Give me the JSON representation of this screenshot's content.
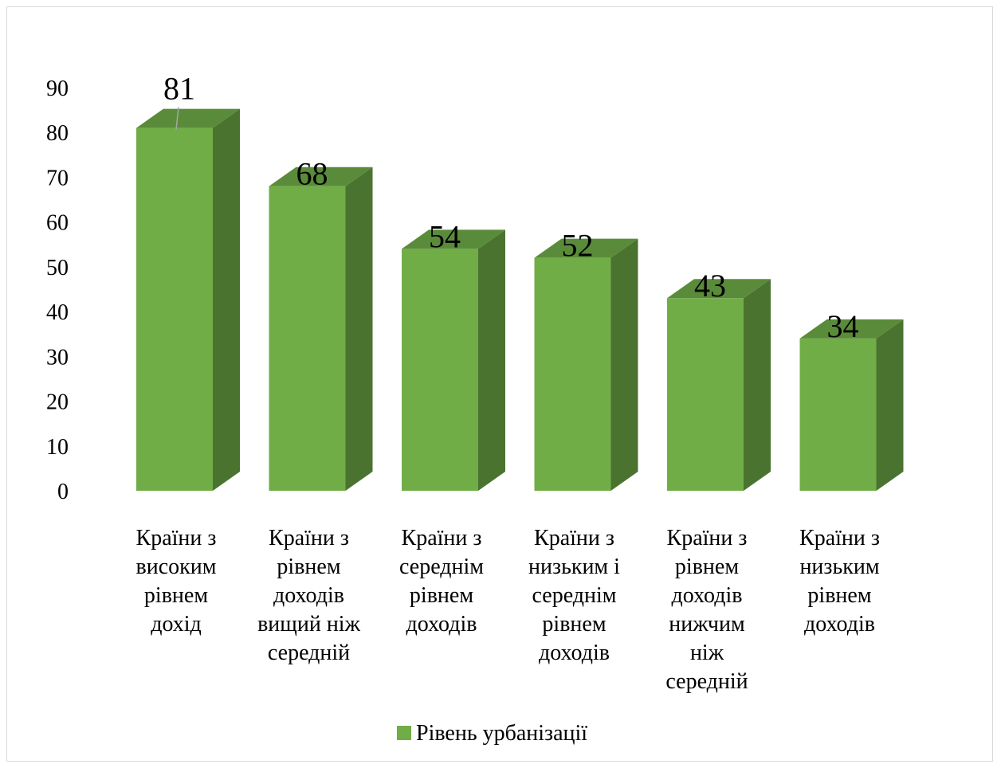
{
  "chart_data": {
    "type": "bar",
    "style": "3d-column",
    "categories": [
      "Країни з високим рівнем дохід",
      "Країни з рівнем доходів вищий ніж середній",
      "Країни з середнім рівнем доходів",
      "Країни з низьким і середнім рівнем доходів",
      "Країни з рівнем доходів нижчим ніж середній",
      "Країни з низьким рівнем доходів"
    ],
    "category_lines": [
      [
        "Країни з",
        "високим",
        "рівнем",
        "дохід"
      ],
      [
        "Країни з",
        "рівнем",
        "доходів",
        "вищий ніж",
        "середній"
      ],
      [
        "Країни з",
        "середнім",
        "рівнем",
        "доходів"
      ],
      [
        "Країни з",
        "низьким і",
        "середнім",
        "рівнем",
        "доходів"
      ],
      [
        "Країни з",
        "рівнем",
        "доходів",
        "нижчим",
        "ніж",
        "середній"
      ],
      [
        "Країни з",
        "низьким",
        "рівнем",
        "доходів"
      ]
    ],
    "series": [
      {
        "name": "Рівень урбанізації",
        "values": [
          81,
          68,
          54,
          52,
          43,
          34
        ]
      }
    ],
    "data_labels": [
      "81",
      "68",
      "54",
      "52",
      "43",
      "34"
    ],
    "y_ticks": [
      "0",
      "10",
      "20",
      "30",
      "40",
      "50",
      "60",
      "70",
      "80",
      "90"
    ],
    "ylim": [
      0,
      90
    ],
    "grid": false,
    "legend_position": "bottom",
    "title": "",
    "xlabel": "",
    "ylabel": "",
    "colors": {
      "front": "#70ad47",
      "side": "#4a7330",
      "top": "#5a8b3a"
    }
  }
}
